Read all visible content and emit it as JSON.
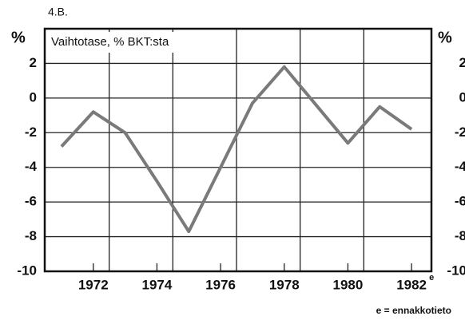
{
  "chart_data": {
    "type": "line",
    "figure_label": "4.B.",
    "title": "Vaihtotase, % BKT:sta",
    "y_label": "%",
    "footnote": "e = ennakkotieto",
    "last_label_mark": "e",
    "x": [
      1971,
      1972,
      1973,
      1974,
      1975,
      1976,
      1977,
      1978,
      1979,
      1980,
      1981,
      1982
    ],
    "series": [
      {
        "name": "Vaihtotase",
        "color": "#7a7a7a",
        "values": [
          -2.8,
          -0.8,
          -2.0,
          -4.8,
          -7.7,
          -4.0,
          -0.3,
          1.8,
          -0.4,
          -2.6,
          -0.5,
          -1.8
        ]
      }
    ],
    "xlim": [
      1970.475,
      1982.625
    ],
    "xticks": [
      1972,
      1974,
      1976,
      1978,
      1980,
      1982
    ],
    "xgrid": [
      1972.5,
      1974.5,
      1976.5,
      1978.5,
      1980.5
    ],
    "ylim": [
      -10,
      4
    ],
    "yticks": [
      -10,
      -8,
      -6,
      -4,
      -2,
      0,
      2
    ],
    "grid": true
  }
}
